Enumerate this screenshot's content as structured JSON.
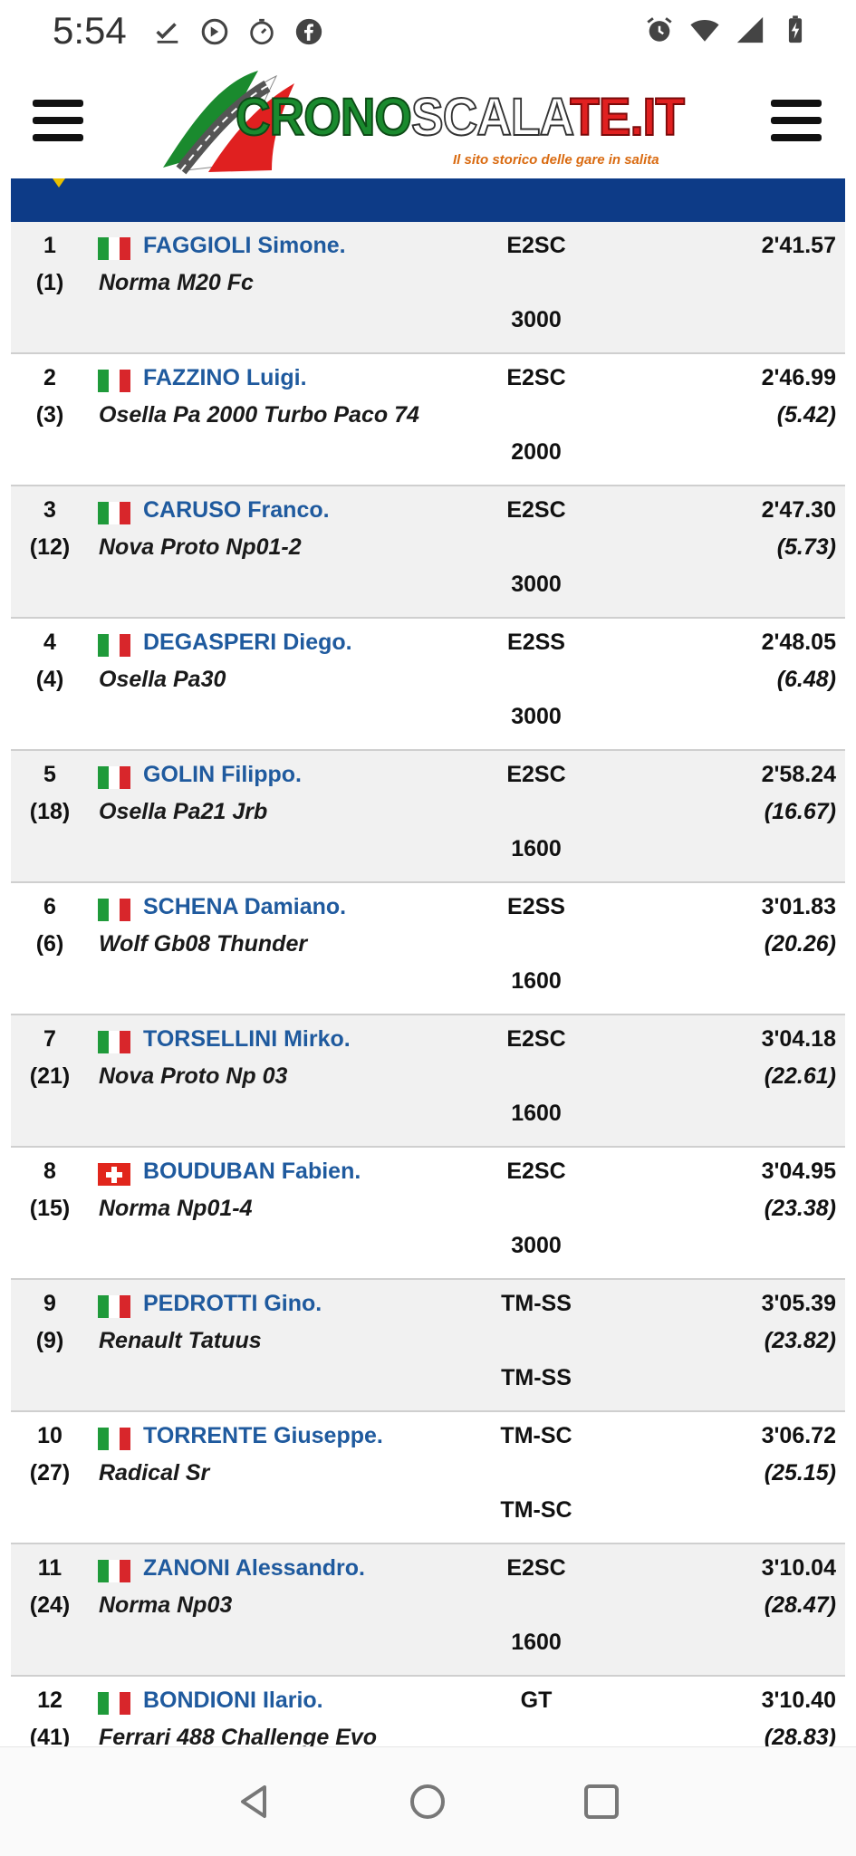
{
  "status_bar": {
    "time": "5:54",
    "left_icons": [
      "download-done-icon",
      "blocked-icon",
      "timer-icon",
      "facebook-icon"
    ],
    "right_icons": [
      "alarm-icon",
      "wifi-icon",
      "signal-icon",
      "battery-charging-icon"
    ]
  },
  "header": {
    "logo_part1": "CRONO",
    "logo_part2": "SCALA",
    "logo_part3": "TE.IT",
    "tagline": "Il sito storico delle gare in salita",
    "menu_left_icon": "hamburger-menu-icon",
    "menu_right_icon": "hamburger-menu-icon"
  },
  "colors": {
    "driver_link": "#1f5a9e",
    "band": "#0d3b87",
    "row_alt": "#f1f1f1"
  },
  "results": [
    {
      "pos": "1",
      "overall": "(1)",
      "flag": "it",
      "driver": "FAGGIOLI Simone.",
      "car": "Norma M20 Fc",
      "class": "E2SC",
      "group": "3000",
      "time": "2'41.57",
      "gap": ""
    },
    {
      "pos": "2",
      "overall": "(3)",
      "flag": "it",
      "driver": "FAZZINO Luigi.",
      "car": "Osella Pa 2000 Turbo Paco 74",
      "class": "E2SC",
      "group": "2000",
      "time": "2'46.99",
      "gap": "(5.42)"
    },
    {
      "pos": "3",
      "overall": "(12)",
      "flag": "it",
      "driver": "CARUSO Franco.",
      "car": "Nova Proto Np01-2",
      "class": "E2SC",
      "group": "3000",
      "time": "2'47.30",
      "gap": "(5.73)"
    },
    {
      "pos": "4",
      "overall": "(4)",
      "flag": "it",
      "driver": "DEGASPERI Diego.",
      "car": "Osella Pa30",
      "class": "E2SS",
      "group": "3000",
      "time": "2'48.05",
      "gap": "(6.48)"
    },
    {
      "pos": "5",
      "overall": "(18)",
      "flag": "it",
      "driver": "GOLIN Filippo.",
      "car": "Osella Pa21 Jrb",
      "class": "E2SC",
      "group": "1600",
      "time": "2'58.24",
      "gap": "(16.67)"
    },
    {
      "pos": "6",
      "overall": "(6)",
      "flag": "it",
      "driver": "SCHENA Damiano.",
      "car": "Wolf Gb08 Thunder",
      "class": "E2SS",
      "group": "1600",
      "time": "3'01.83",
      "gap": "(20.26)"
    },
    {
      "pos": "7",
      "overall": "(21)",
      "flag": "it",
      "driver": "TORSELLINI Mirko.",
      "car": "Nova Proto Np 03",
      "class": "E2SC",
      "group": "1600",
      "time": "3'04.18",
      "gap": "(22.61)"
    },
    {
      "pos": "8",
      "overall": "(15)",
      "flag": "ch",
      "driver": "BOUDUBAN Fabien.",
      "car": "Norma Np01-4",
      "class": "E2SC",
      "group": "3000",
      "time": "3'04.95",
      "gap": "(23.38)"
    },
    {
      "pos": "9",
      "overall": "(9)",
      "flag": "it",
      "driver": "PEDROTTI Gino.",
      "car": "Renault Tatuus",
      "class": "TM-SS",
      "group": "TM-SS",
      "time": "3'05.39",
      "gap": "(23.82)"
    },
    {
      "pos": "10",
      "overall": "(27)",
      "flag": "it",
      "driver": "TORRENTE Giuseppe.",
      "car": "Radical Sr",
      "class": "TM-SC",
      "group": "TM-SC",
      "time": "3'06.72",
      "gap": "(25.15)"
    },
    {
      "pos": "11",
      "overall": "(24)",
      "flag": "it",
      "driver": "ZANONI Alessandro.",
      "car": "Norma Np03",
      "class": "E2SC",
      "group": "1600",
      "time": "3'10.04",
      "gap": "(28.47)"
    },
    {
      "pos": "12",
      "overall": "(41)",
      "flag": "it",
      "driver": "BONDIONI Ilario.",
      "car": "Ferrari 488 Challenge Evo",
      "class": "GT",
      "group": "",
      "time": "3'10.40",
      "gap": "(28.83)"
    }
  ],
  "nav_bar": {
    "back_icon": "back-triangle-icon",
    "home_icon": "home-circle-icon",
    "recent_icon": "recent-apps-square-icon"
  }
}
